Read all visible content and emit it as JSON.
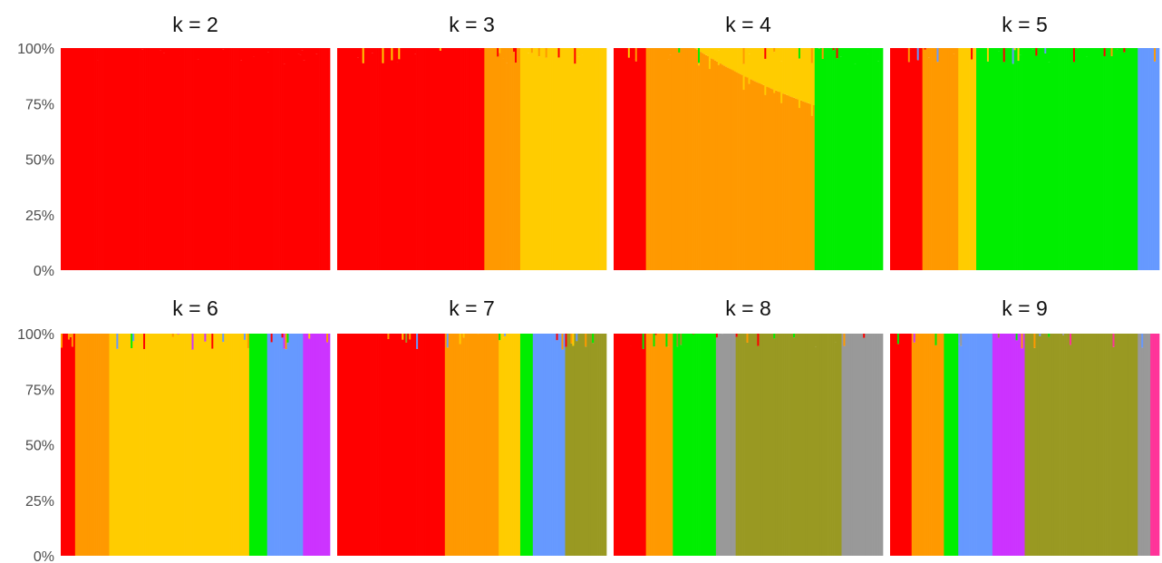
{
  "chart_data": {
    "type": "bar",
    "stacked": true,
    "y_ticks": [
      "100%",
      "75%",
      "50%",
      "25%",
      "0%"
    ],
    "ylim": [
      0,
      100
    ],
    "grid": false,
    "palette": {
      "red": "#ff0000",
      "orange": "#ff9900",
      "yellow": "#ffcc00",
      "green": "#00ee00",
      "blue": "#6699ff",
      "magenta": "#cc33ff",
      "olive": "#999922",
      "gray": "#999999",
      "pink": "#ff3399"
    },
    "n_bars": 150,
    "panels": [
      {
        "title": "k = 2",
        "segments": [
          {
            "color": "red",
            "start": [
              0,
              100
            ],
            "end": [
              0.85,
              100
            ]
          },
          {
            "color": "red",
            "start": [
              0.85,
              98
            ],
            "end": [
              0.95,
              25
            ]
          },
          {
            "color": "red",
            "start": [
              0.95,
              25
            ],
            "end": [
              1.0,
              50
            ]
          }
        ]
      },
      {
        "title": "k = 3",
        "segments": [
          {
            "color": "red",
            "start": [
              0,
              100
            ],
            "end": [
              0.55,
              50
            ]
          },
          {
            "color": "orange",
            "start": [
              0.55,
              100
            ],
            "end": [
              0.68,
              100
            ]
          },
          {
            "color": "yellow",
            "start": [
              0.68,
              100
            ],
            "end": [
              1.0,
              50
            ]
          }
        ]
      },
      {
        "title": "k = 4",
        "segments": [
          {
            "color": "red",
            "start": [
              0,
              100
            ],
            "end": [
              0.12,
              50
            ]
          },
          {
            "color": "orange",
            "start": [
              0.12,
              100
            ],
            "end": [
              0.75,
              100
            ]
          },
          {
            "color": "yellow",
            "start": [
              0.3,
              0
            ],
            "end": [
              0.75,
              35
            ]
          },
          {
            "color": "green",
            "start": [
              0.85,
              100
            ],
            "end": [
              1.0,
              20
            ]
          }
        ]
      },
      {
        "title": "k = 5",
        "segments": [
          {
            "color": "red",
            "start": [
              0,
              100
            ],
            "end": [
              0.12,
              50
            ]
          },
          {
            "color": "orange",
            "start": [
              0.12,
              100
            ],
            "end": [
              0.25,
              60
            ]
          },
          {
            "color": "yellow",
            "start": [
              0.25,
              100
            ],
            "end": [
              0.32,
              60
            ]
          },
          {
            "color": "green",
            "start": [
              0.32,
              100
            ],
            "end": [
              0.92,
              50
            ]
          },
          {
            "color": "blue",
            "start": [
              0.92,
              40
            ],
            "end": [
              1.0,
              10
            ]
          }
        ]
      },
      {
        "title": "k = 6",
        "segments": [
          {
            "color": "red",
            "start": [
              0,
              100
            ],
            "end": [
              0.05,
              60
            ]
          },
          {
            "color": "orange",
            "start": [
              0.05,
              100
            ],
            "end": [
              0.18,
              45
            ]
          },
          {
            "color": "yellow",
            "start": [
              0.18,
              100
            ],
            "end": [
              0.7,
              80
            ]
          },
          {
            "color": "green",
            "start": [
              0.7,
              100
            ],
            "end": [
              0.77,
              100
            ]
          },
          {
            "color": "blue",
            "start": [
              0.77,
              100
            ],
            "end": [
              0.9,
              60
            ]
          },
          {
            "color": "magenta",
            "start": [
              0.9,
              100
            ],
            "end": [
              1.0,
              100
            ]
          }
        ]
      },
      {
        "title": "k = 7",
        "segments": [
          {
            "color": "red",
            "start": [
              0,
              100
            ],
            "end": [
              0.4,
              50
            ]
          },
          {
            "color": "orange",
            "start": [
              0.4,
              100
            ],
            "end": [
              0.6,
              40
            ]
          },
          {
            "color": "yellow",
            "start": [
              0.6,
              100
            ],
            "end": [
              0.68,
              50
            ]
          },
          {
            "color": "green",
            "start": [
              0.68,
              100
            ],
            "end": [
              0.73,
              100
            ]
          },
          {
            "color": "blue",
            "start": [
              0.73,
              100
            ],
            "end": [
              0.85,
              100
            ]
          },
          {
            "color": "olive",
            "start": [
              0.85,
              100
            ],
            "end": [
              1.0,
              100
            ]
          }
        ]
      },
      {
        "title": "k = 8",
        "segments": [
          {
            "color": "red",
            "start": [
              0,
              100
            ],
            "end": [
              0.12,
              50
            ]
          },
          {
            "color": "orange",
            "start": [
              0.12,
              100
            ],
            "end": [
              0.22,
              60
            ]
          },
          {
            "color": "green",
            "start": [
              0.22,
              100
            ],
            "end": [
              0.38,
              60
            ]
          },
          {
            "color": "olive",
            "start": [
              0.45,
              100
            ],
            "end": [
              0.85,
              50
            ]
          },
          {
            "color": "gray",
            "start": [
              0.85,
              100
            ],
            "end": [
              1.0,
              70
            ]
          }
        ]
      },
      {
        "title": "k = 9",
        "segments": [
          {
            "color": "red",
            "start": [
              0,
              100
            ],
            "end": [
              0.08,
              50
            ]
          },
          {
            "color": "orange",
            "start": [
              0.08,
              100
            ],
            "end": [
              0.2,
              60
            ]
          },
          {
            "color": "green",
            "start": [
              0.2,
              100
            ],
            "end": [
              0.25,
              100
            ]
          },
          {
            "color": "blue",
            "start": [
              0.25,
              100
            ],
            "end": [
              0.38,
              100
            ]
          },
          {
            "color": "magenta",
            "start": [
              0.38,
              100
            ],
            "end": [
              0.5,
              100
            ]
          },
          {
            "color": "olive",
            "start": [
              0.5,
              100
            ],
            "end": [
              0.92,
              60
            ]
          },
          {
            "color": "gray",
            "start": [
              0.92,
              100
            ],
            "end": [
              0.97,
              100
            ]
          },
          {
            "color": "pink",
            "start": [
              0.97,
              100
            ],
            "end": [
              1.0,
              100
            ]
          }
        ]
      }
    ]
  }
}
